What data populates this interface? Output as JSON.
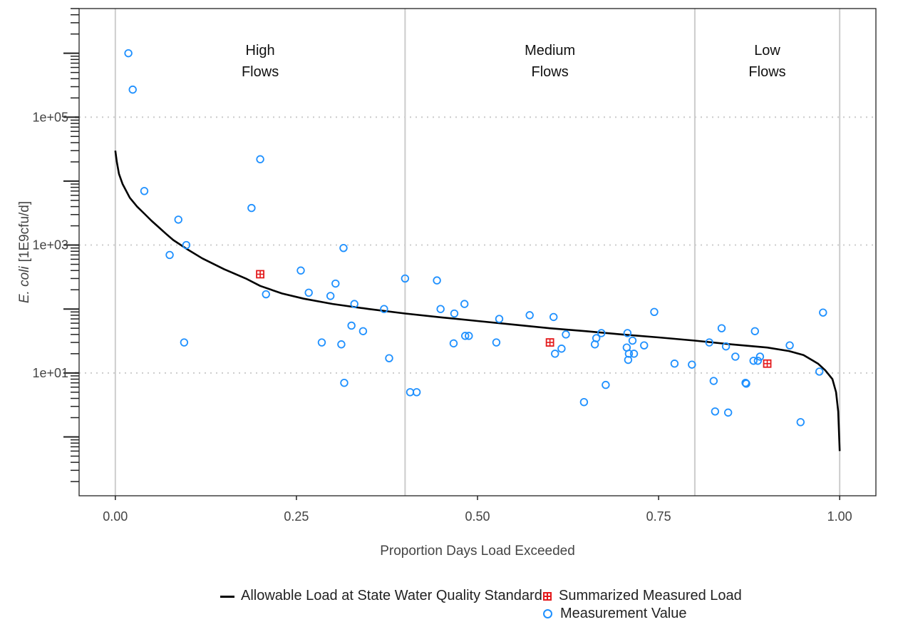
{
  "chart_data": {
    "type": "scatter",
    "title": "",
    "xlabel": "Proportion Days Load Exceeded",
    "ylabel_italic": "E. coli",
    "ylabel_unit": "[1E9cfu/d]",
    "xlim": [
      -0.05,
      1.05
    ],
    "ylim": [
      0.12,
      5000000
    ],
    "y_scale": "log",
    "grid": "dotted horizontal at labeled y ticks",
    "x_ticks": [
      0,
      0.25,
      0.5,
      0.75,
      1.0
    ],
    "x_tick_labels": [
      "0.00",
      "0.25",
      "0.50",
      "0.75",
      "1.00"
    ],
    "y_ticks": [
      10,
      1000,
      100000
    ],
    "y_tick_labels": [
      "1e+01",
      "1e+03",
      "1e+05"
    ],
    "region_dividers": [
      0,
      0.4,
      0.8,
      1.0
    ],
    "regions": [
      {
        "line1": "High",
        "line2": "Flows",
        "x": 0.2
      },
      {
        "line1": "Medium",
        "line2": "Flows",
        "x": 0.6
      },
      {
        "line1": "Low",
        "line2": "Flows",
        "x": 0.9
      }
    ],
    "colors": {
      "curve": "#000000",
      "summary": "#e31a1c",
      "points": "#1e90ff",
      "divider": "#cccccc",
      "grid": "#cccccc"
    },
    "series": [
      {
        "name": "Allowable Load at State Water Quality Standard",
        "type": "line",
        "points": [
          [
            0.0,
            30000
          ],
          [
            0.002,
            20000
          ],
          [
            0.005,
            13000
          ],
          [
            0.01,
            9000
          ],
          [
            0.02,
            5500
          ],
          [
            0.03,
            4000
          ],
          [
            0.04,
            3100
          ],
          [
            0.05,
            2400
          ],
          [
            0.06,
            1900
          ],
          [
            0.07,
            1500
          ],
          [
            0.08,
            1200
          ],
          [
            0.1,
            850
          ],
          [
            0.12,
            620
          ],
          [
            0.15,
            420
          ],
          [
            0.18,
            300
          ],
          [
            0.2,
            230
          ],
          [
            0.23,
            175
          ],
          [
            0.26,
            145
          ],
          [
            0.3,
            120
          ],
          [
            0.35,
            100
          ],
          [
            0.4,
            85
          ],
          [
            0.45,
            74
          ],
          [
            0.5,
            65
          ],
          [
            0.55,
            57
          ],
          [
            0.6,
            50
          ],
          [
            0.65,
            45
          ],
          [
            0.7,
            40
          ],
          [
            0.75,
            36
          ],
          [
            0.8,
            32
          ],
          [
            0.85,
            28
          ],
          [
            0.9,
            25
          ],
          [
            0.93,
            22
          ],
          [
            0.95,
            19
          ],
          [
            0.97,
            14
          ],
          [
            0.98,
            11
          ],
          [
            0.99,
            8
          ],
          [
            0.995,
            5
          ],
          [
            0.998,
            2.5
          ],
          [
            1.0,
            0.6
          ]
        ]
      },
      {
        "name": "Summarized Measured Load",
        "type": "points",
        "points": [
          [
            0.2,
            350
          ],
          [
            0.6,
            30
          ],
          [
            0.9,
            14
          ]
        ]
      },
      {
        "name": "Measurement Value",
        "type": "points",
        "points": [
          [
            0.018,
            1000000
          ],
          [
            0.024,
            270000
          ],
          [
            0.04,
            7000
          ],
          [
            0.075,
            700
          ],
          [
            0.087,
            2500
          ],
          [
            0.095,
            30
          ],
          [
            0.098,
            1000
          ],
          [
            0.188,
            3800
          ],
          [
            0.2,
            22000
          ],
          [
            0.208,
            170
          ],
          [
            0.256,
            400
          ],
          [
            0.267,
            180
          ],
          [
            0.285,
            30
          ],
          [
            0.297,
            160
          ],
          [
            0.304,
            250
          ],
          [
            0.312,
            28
          ],
          [
            0.315,
            900
          ],
          [
            0.316,
            7
          ],
          [
            0.326,
            55
          ],
          [
            0.33,
            120
          ],
          [
            0.342,
            45
          ],
          [
            0.371,
            100
          ],
          [
            0.378,
            17
          ],
          [
            0.4,
            300
          ],
          [
            0.407,
            5
          ],
          [
            0.416,
            5
          ],
          [
            0.444,
            280
          ],
          [
            0.449,
            100
          ],
          [
            0.467,
            29
          ],
          [
            0.468,
            85
          ],
          [
            0.482,
            120
          ],
          [
            0.483,
            38
          ],
          [
            0.488,
            38
          ],
          [
            0.526,
            30
          ],
          [
            0.53,
            70
          ],
          [
            0.572,
            80
          ],
          [
            0.605,
            75
          ],
          [
            0.607,
            20
          ],
          [
            0.616,
            24
          ],
          [
            0.622,
            40
          ],
          [
            0.647,
            3.5
          ],
          [
            0.662,
            28
          ],
          [
            0.664,
            35
          ],
          [
            0.671,
            42
          ],
          [
            0.677,
            6.5
          ],
          [
            0.706,
            25
          ],
          [
            0.707,
            42
          ],
          [
            0.708,
            16
          ],
          [
            0.709,
            20
          ],
          [
            0.714,
            32
          ],
          [
            0.716,
            20
          ],
          [
            0.73,
            27
          ],
          [
            0.744,
            90
          ],
          [
            0.772,
            14
          ],
          [
            0.796,
            13.5
          ],
          [
            0.82,
            30
          ],
          [
            0.826,
            7.5
          ],
          [
            0.828,
            2.5
          ],
          [
            0.837,
            50
          ],
          [
            0.843,
            26
          ],
          [
            0.846,
            2.4
          ],
          [
            0.856,
            18
          ],
          [
            0.87,
            7
          ],
          [
            0.871,
            6.8
          ],
          [
            0.881,
            15.5
          ],
          [
            0.883,
            45
          ],
          [
            0.887,
            15.5
          ],
          [
            0.89,
            18
          ],
          [
            0.931,
            27
          ],
          [
            0.946,
            1.7
          ],
          [
            0.972,
            10.5
          ],
          [
            0.977,
            88
          ]
        ]
      }
    ]
  },
  "legend": {
    "curve_label": "Allowable Load at State Water Quality Standard",
    "summary_label": "Summarized Measured Load",
    "points_label": "Measurement Value"
  }
}
